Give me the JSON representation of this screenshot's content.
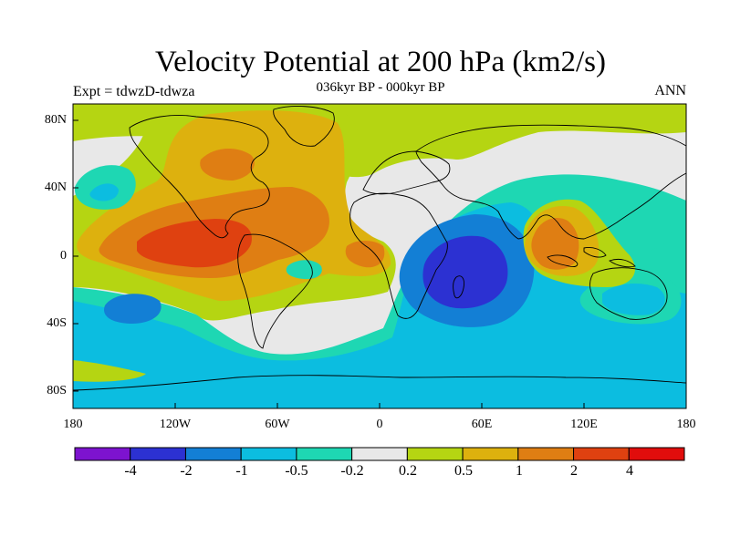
{
  "title": "Velocity Potential at 200 hPa (km2/s)",
  "subtitle": "036kyr BP - 000kyr BP",
  "experiment_label": "Expt = tdwzD-tdwza",
  "season_label": "ANN",
  "y_ticks": [
    "80N",
    "40N",
    "0",
    "40S",
    "80S"
  ],
  "x_ticks": [
    "180",
    "120W",
    "60W",
    "0",
    "60E",
    "120E",
    "180"
  ],
  "colorbar": {
    "colors": [
      "#7d13cf",
      "#2c31d2",
      "#137fd5",
      "#0cbde0",
      "#1ed7b3",
      "#e8e8e8",
      "#b5d512",
      "#ddb10e",
      "#df7e13",
      "#df4110",
      "#e10d0c"
    ],
    "labels": [
      "-4",
      "-2",
      "-1",
      "-0.5",
      "-0.2",
      "0.2",
      "0.5",
      "1",
      "2",
      "4"
    ]
  },
  "colors": {
    "neutral": "#e8e8e8",
    "weak_positive": "#b5d512",
    "positive_1": "#ddb10e",
    "positive_2": "#df7e13",
    "positive_3": "#df4110",
    "weak_negative": "#1ed7b3",
    "negative_1": "#0cbde0",
    "negative_2": "#137fd5",
    "negative_3": "#2c31d2",
    "coast": "#000000"
  }
}
